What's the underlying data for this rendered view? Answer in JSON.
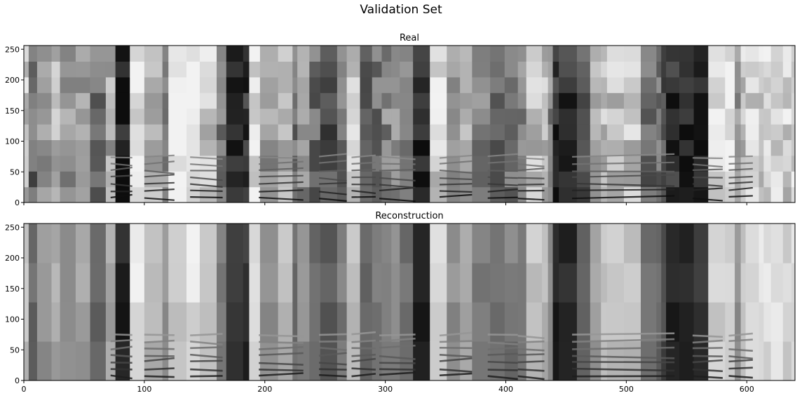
{
  "figure": {
    "title": "Validation Set"
  },
  "chart_data": [
    {
      "type": "heatmap",
      "title": "Real",
      "colormap": "gray",
      "xlim": [
        0,
        640
      ],
      "ylim": [
        0,
        256
      ],
      "xticks": [
        0,
        100,
        200,
        300,
        400,
        500,
        600
      ],
      "xtick_labels_visible": false,
      "yticks": [
        0,
        50,
        100,
        150,
        200,
        250
      ],
      "ytick_labels": [
        "0",
        "50",
        "100",
        "150",
        "200",
        "250"
      ],
      "xlabel": "",
      "ylabel": "",
      "grid": false
    },
    {
      "type": "heatmap",
      "title": "Reconstruction",
      "colormap": "gray",
      "xlim": [
        0,
        640
      ],
      "ylim": [
        0,
        256
      ],
      "xticks": [
        0,
        100,
        200,
        300,
        400,
        500,
        600
      ],
      "xtick_labels": [
        "0",
        "100",
        "200",
        "300",
        "400",
        "500",
        "600"
      ],
      "yticks": [
        0,
        50,
        100,
        150,
        200,
        250
      ],
      "ytick_labels": [
        "0",
        "50",
        "100",
        "150",
        "200",
        "250"
      ],
      "xlabel": "",
      "ylabel": "",
      "grid": false
    }
  ]
}
